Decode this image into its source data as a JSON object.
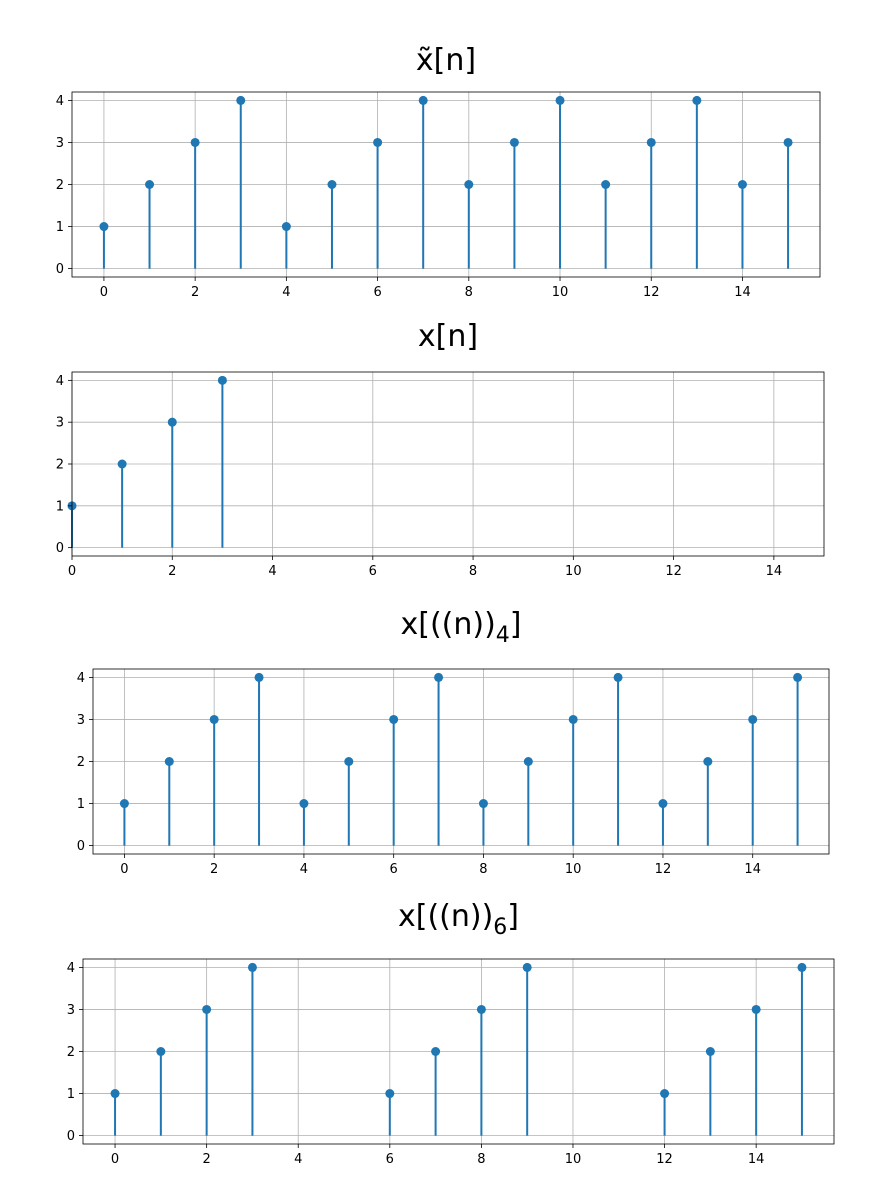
{
  "chart_data": [
    {
      "type": "stem",
      "title": "x̃[n]",
      "x": [
        0,
        1,
        2,
        3,
        4,
        5,
        6,
        7,
        8,
        9,
        10,
        11,
        12,
        13,
        14,
        15
      ],
      "y": [
        1,
        2,
        3,
        4,
        1,
        2,
        3,
        4,
        2,
        3,
        4,
        2,
        3,
        4,
        2,
        3
      ],
      "xlim": [
        -0.7,
        15.7
      ],
      "ylim": [
        -0.2,
        4.2
      ],
      "xticks": [
        0,
        2,
        4,
        6,
        8,
        10,
        12,
        14
      ],
      "yticks": [
        0,
        1,
        2,
        3,
        4
      ],
      "grid": true,
      "color": "#1f77b4"
    },
    {
      "type": "stem",
      "title": "x[n]",
      "x": [
        0,
        1,
        2,
        3
      ],
      "y": [
        1,
        2,
        3,
        4
      ],
      "xlim": [
        0,
        15
      ],
      "ylim": [
        -0.2,
        4.2
      ],
      "xticks": [
        0,
        2,
        4,
        6,
        8,
        10,
        12,
        14
      ],
      "yticks": [
        0,
        1,
        2,
        3,
        4
      ],
      "grid": true,
      "color": "#1f77b4"
    },
    {
      "type": "stem",
      "title": "x[((n))4]",
      "x": [
        0,
        1,
        2,
        3,
        4,
        5,
        6,
        7,
        8,
        9,
        10,
        11,
        12,
        13,
        14,
        15
      ],
      "y": [
        1,
        2,
        3,
        4,
        1,
        2,
        3,
        4,
        1,
        2,
        3,
        4,
        1,
        2,
        3,
        4
      ],
      "xlim": [
        -0.7,
        15.7
      ],
      "ylim": [
        -0.2,
        4.2
      ],
      "xticks": [
        0,
        2,
        4,
        6,
        8,
        10,
        12,
        14
      ],
      "yticks": [
        0,
        1,
        2,
        3,
        4
      ],
      "grid": true,
      "color": "#1f77b4"
    },
    {
      "type": "stem",
      "title": "x[((n))6]",
      "x": [
        0,
        1,
        2,
        3,
        6,
        7,
        8,
        9,
        12,
        13,
        14,
        15
      ],
      "y": [
        1,
        2,
        3,
        4,
        1,
        2,
        3,
        4,
        1,
        2,
        3,
        4
      ],
      "xlim": [
        -0.7,
        15.7
      ],
      "ylim": [
        -0.2,
        4.2
      ],
      "xticks": [
        0,
        2,
        4,
        6,
        8,
        10,
        12,
        14
      ],
      "yticks": [
        0,
        1,
        2,
        3,
        4
      ],
      "grid": true,
      "color": "#1f77b4"
    }
  ]
}
